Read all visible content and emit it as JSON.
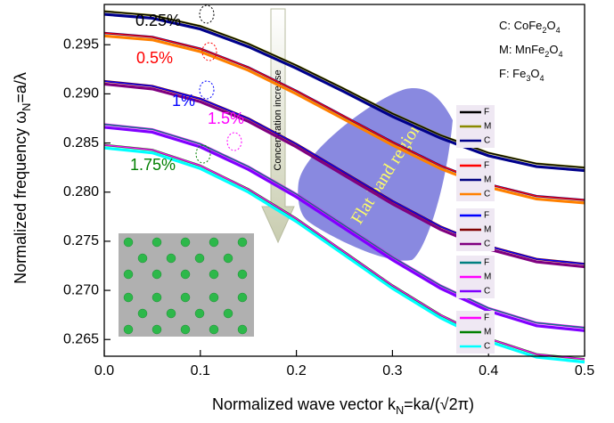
{
  "chart_data": {
    "type": "line",
    "xlabel": [
      "Normalized wave vector k",
      "N",
      "=ka/(√2π)"
    ],
    "ylabel": [
      "Normalized frequency ω",
      "N",
      "=a/λ"
    ],
    "x": [
      0,
      0.05,
      0.1,
      0.15,
      0.2,
      0.25,
      0.3,
      0.35,
      0.4,
      0.45,
      0.5
    ],
    "xlim": [
      0,
      0.5
    ],
    "xticks": [
      {
        "value": 0,
        "label": "0.0"
      },
      0.1,
      0.2,
      0.3,
      0.4,
      0.5
    ],
    "ylim": [
      0.2633,
      0.2991
    ],
    "yticks": [
      0.265,
      {
        "value": 0.27,
        "label": "0.270"
      },
      0.275,
      {
        "value": 0.28,
        "label": "0.280"
      },
      0.285,
      {
        "value": 0.29,
        "label": "0.290"
      },
      0.295
    ],
    "materials": [
      [
        "C: CoFe",
        "2",
        "O",
        "4"
      ],
      [
        "M: MnFe",
        "2",
        "O",
        "4"
      ],
      [
        "F: Fe",
        "3",
        "O",
        "4"
      ]
    ],
    "arrow_label": "Concentration increase",
    "region_label": "Flat band region",
    "groups": [
      {
        "label": "0.25%",
        "color": "#000000",
        "series": [
          {
            "name": "F",
            "color": "#000000",
            "values": [
              0.2984,
              0.298,
              0.2969,
              0.2951,
              0.2929,
              0.2905,
              0.288,
              0.2858,
              0.284,
              0.2829,
              0.2825
            ]
          },
          {
            "name": "M",
            "color": "#8a8a00",
            "values": [
              0.2984,
              0.298,
              0.2969,
              0.2951,
              0.2929,
              0.2905,
              0.288,
              0.2858,
              0.284,
              0.2829,
              0.2825
            ]
          },
          {
            "name": "C",
            "color": "#00008b",
            "values": [
              0.2981,
              0.2977,
              0.2966,
              0.2948,
              0.2926,
              0.2902,
              0.2877,
              0.2855,
              0.2837,
              0.2826,
              0.2822
            ]
          }
        ]
      },
      {
        "label": "0.5%",
        "color": "#ff0000",
        "series": [
          {
            "name": "F",
            "color": "#ff0000",
            "values": [
              0.2962,
              0.2958,
              0.2946,
              0.2927,
              0.2903,
              0.2877,
              0.2851,
              0.2827,
              0.2808,
              0.2796,
              0.2792
            ]
          },
          {
            "name": "M",
            "color": "#000080",
            "values": [
              0.2962,
              0.2958,
              0.2946,
              0.2927,
              0.2903,
              0.2877,
              0.2851,
              0.2827,
              0.2808,
              0.2796,
              0.2792
            ]
          },
          {
            "name": "C",
            "color": "#ff8000",
            "values": [
              0.2959,
              0.2955,
              0.2943,
              0.2924,
              0.29,
              0.2874,
              0.2848,
              0.2824,
              0.2805,
              0.2793,
              0.2789
            ]
          }
        ]
      },
      {
        "label": "1%",
        "color": "#0000ff",
        "series": [
          {
            "name": "F",
            "color": "#0000ff",
            "values": [
              0.2913,
              0.2908,
              0.2895,
              0.2875,
              0.2849,
              0.282,
              0.2791,
              0.2765,
              0.2745,
              0.2732,
              0.2727
            ]
          },
          {
            "name": "M",
            "color": "#800000",
            "values": [
              0.2913,
              0.2908,
              0.2895,
              0.2875,
              0.2849,
              0.282,
              0.2791,
              0.2765,
              0.2745,
              0.2732,
              0.2727
            ]
          },
          {
            "name": "C",
            "color": "#800080",
            "values": [
              0.291,
              0.2905,
              0.2892,
              0.2872,
              0.2846,
              0.2817,
              0.2788,
              0.2762,
              0.2742,
              0.2729,
              0.2724
            ]
          }
        ]
      },
      {
        "label": "1.5%",
        "color": "#ff00ff",
        "series": [
          {
            "name": "F",
            "color": "#008080",
            "values": [
              0.2869,
              0.2864,
              0.2849,
              0.2826,
              0.2798,
              0.2766,
              0.2734,
              0.2705,
              0.2682,
              0.2667,
              0.2662
            ]
          },
          {
            "name": "M",
            "color": "#ff00ff",
            "values": [
              0.2869,
              0.2864,
              0.2849,
              0.2826,
              0.2798,
              0.2766,
              0.2734,
              0.2705,
              0.2682,
              0.2667,
              0.2662
            ]
          },
          {
            "name": "C",
            "color": "#8000ff",
            "values": [
              0.2866,
              0.2861,
              0.2846,
              0.2823,
              0.2795,
              0.2763,
              0.2731,
              0.2702,
              0.2679,
              0.2664,
              0.2659
            ]
          }
        ]
      },
      {
        "label": "1.75%",
        "color": "#008000",
        "series": [
          {
            "name": "F",
            "color": "#ff00ff",
            "values": [
              0.2848,
              0.2843,
              0.2827,
              0.2803,
              0.2773,
              0.2739,
              0.2705,
              0.2675,
              0.2651,
              0.2635,
              0.263
            ]
          },
          {
            "name": "M",
            "color": "#008000",
            "values": [
              0.2848,
              0.2843,
              0.2827,
              0.2803,
              0.2773,
              0.2739,
              0.2705,
              0.2675,
              0.2651,
              0.2635,
              0.263
            ]
          },
          {
            "name": "C",
            "color": "#00ffff",
            "values": [
              0.2845,
              0.284,
              0.2824,
              0.28,
              0.277,
              0.2736,
              0.2702,
              0.2672,
              0.2648,
              0.2632,
              0.2627
            ]
          }
        ]
      }
    ]
  }
}
